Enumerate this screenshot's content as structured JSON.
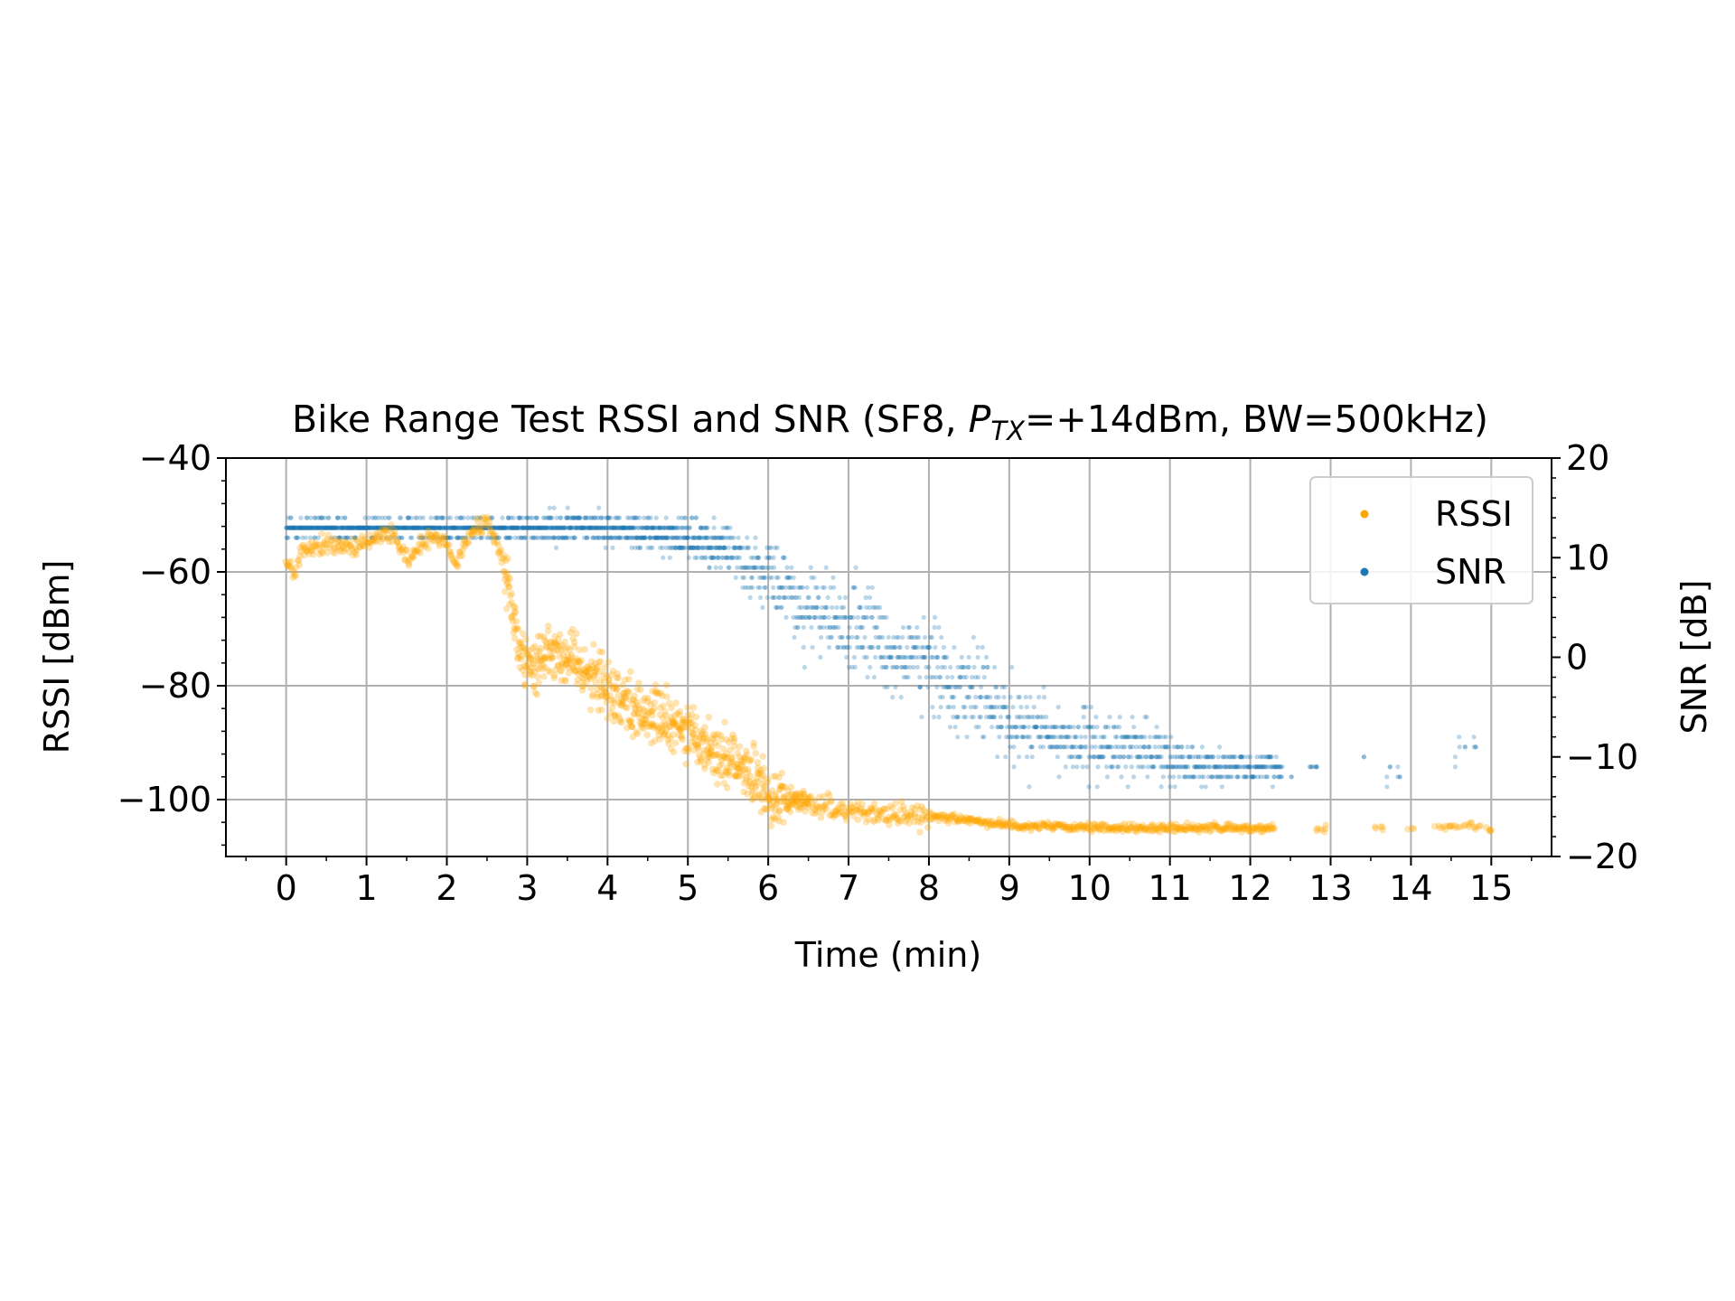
{
  "chart_data": {
    "type": "scatter",
    "title": {
      "prefix": "Bike Range Test RSSI and SNR (SF8, ",
      "italic_main": "P",
      "italic_sub": "TX",
      "suffix": "=+14dBm, BW=500kHz)"
    },
    "xlabel": "Time (min)",
    "ylabel_left": "RSSI [dBm]",
    "ylabel_right": "SNR [dB]",
    "xlim": [
      -0.75,
      15.75
    ],
    "ylim_left": [
      -110,
      -40
    ],
    "ylim_right": [
      -20,
      20
    ],
    "x_ticks": [
      0,
      1,
      2,
      3,
      4,
      5,
      6,
      7,
      8,
      9,
      10,
      11,
      12,
      13,
      14,
      15
    ],
    "y_ticks_left": [
      -40,
      -60,
      -80,
      -100
    ],
    "y_ticks_left_labels": [
      "−40",
      "−60",
      "−80",
      "−100"
    ],
    "y_ticks_right": [
      20,
      10,
      0,
      -10,
      -20
    ],
    "y_ticks_right_labels": [
      "20",
      "10",
      "0",
      "−10",
      "−20"
    ],
    "grid": true,
    "legend_position": "top-right",
    "series": [
      {
        "name": "RSSI",
        "axis": "left",
        "color": "#FFA500",
        "trend": [
          [
            0.0,
            -58
          ],
          [
            0.1,
            -61
          ],
          [
            0.2,
            -56
          ],
          [
            0.5,
            -55
          ],
          [
            0.8,
            -56
          ],
          [
            1.0,
            -55
          ],
          [
            1.3,
            -53
          ],
          [
            1.5,
            -58
          ],
          [
            1.8,
            -54
          ],
          [
            2.0,
            -55
          ],
          [
            2.1,
            -59
          ],
          [
            2.3,
            -53
          ],
          [
            2.5,
            -51
          ],
          [
            2.7,
            -58
          ],
          [
            2.8,
            -66
          ],
          [
            2.9,
            -73
          ],
          [
            3.1,
            -77
          ],
          [
            3.3,
            -73
          ],
          [
            3.6,
            -76
          ],
          [
            3.9,
            -79
          ],
          [
            4.2,
            -83
          ],
          [
            4.5,
            -85
          ],
          [
            4.8,
            -87
          ],
          [
            5.1,
            -89
          ],
          [
            5.4,
            -92
          ],
          [
            5.7,
            -95
          ],
          [
            6.0,
            -99
          ],
          [
            6.3,
            -100
          ],
          [
            6.6,
            -101
          ],
          [
            7.0,
            -102
          ],
          [
            7.5,
            -102.5
          ],
          [
            8.0,
            -103
          ],
          [
            8.5,
            -103.5
          ],
          [
            9.0,
            -104.5
          ],
          [
            10.0,
            -105
          ],
          [
            11.0,
            -105
          ],
          [
            12.0,
            -105
          ],
          [
            12.3,
            -105
          ],
          [
            12.9,
            -105
          ],
          [
            13.6,
            -105
          ],
          [
            14.0,
            -105
          ],
          [
            14.3,
            -105
          ],
          [
            14.7,
            -104.5
          ],
          [
            15.0,
            -105
          ]
        ],
        "gaps": [
          [
            12.35,
            12.8
          ],
          [
            12.95,
            13.55
          ],
          [
            13.65,
            13.9
          ],
          [
            14.05,
            14.25
          ]
        ]
      },
      {
        "name": "SNR",
        "axis": "right",
        "color": "#1F77B4",
        "levels": [
          [
            0.0,
            13
          ],
          [
            0.5,
            13
          ],
          [
            1.0,
            13
          ],
          [
            1.5,
            13
          ],
          [
            2.0,
            13
          ],
          [
            2.5,
            13
          ],
          [
            3.0,
            13
          ],
          [
            3.5,
            13
          ],
          [
            4.0,
            13
          ],
          [
            4.5,
            12.5
          ],
          [
            5.0,
            12
          ],
          [
            5.5,
            11
          ],
          [
            6.0,
            8
          ],
          [
            6.5,
            5
          ],
          [
            7.0,
            3
          ],
          [
            7.5,
            1
          ],
          [
            8.0,
            -1
          ],
          [
            8.5,
            -3
          ],
          [
            9.0,
            -6
          ],
          [
            9.5,
            -8
          ],
          [
            10.0,
            -9
          ],
          [
            10.5,
            -9
          ],
          [
            11.0,
            -10
          ],
          [
            11.5,
            -11
          ],
          [
            12.0,
            -11
          ],
          [
            12.3,
            -11
          ],
          [
            13.0,
            -11
          ],
          [
            14.0,
            -11
          ],
          [
            14.5,
            -10
          ],
          [
            14.7,
            -8
          ],
          [
            15.0,
            -9
          ]
        ],
        "spread": [
          [
            0.0,
            1.5
          ],
          [
            2.5,
            1.5
          ],
          [
            3.0,
            2
          ],
          [
            4.5,
            2.5
          ],
          [
            5.5,
            4
          ],
          [
            6.5,
            7
          ],
          [
            8.5,
            8
          ],
          [
            9.5,
            6
          ],
          [
            11.0,
            4
          ],
          [
            12.0,
            2
          ],
          [
            15.0,
            3
          ]
        ]
      }
    ]
  }
}
